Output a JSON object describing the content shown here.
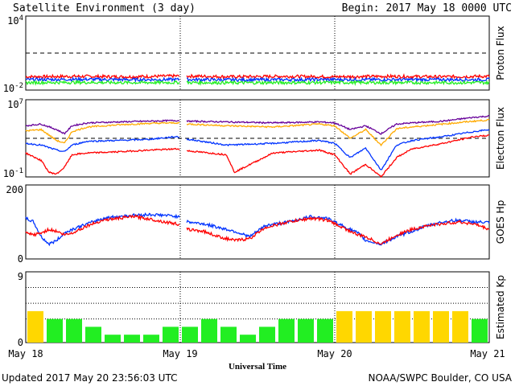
{
  "header": {
    "title": "Satellite Environment (3 day)",
    "begin": "Begin:  2017 May 18 0000 UTC"
  },
  "footer": {
    "updated": "Updated 2017 May 20 23:56:03 UTC",
    "credit": "NOAA/SWPC Boulder, CO USA",
    "xlabel": "Universal Time"
  },
  "colors": {
    "red": "#ff0000",
    "blue": "#0033ff",
    "green": "#22ee22",
    "purple": "#660099",
    "orange": "#ffaa00",
    "kp_green": "#22ee22",
    "kp_yellow": "#ffd700"
  },
  "chart_data": [
    {
      "type": "line",
      "name": "proton-flux",
      "ylabel": "Proton Flux",
      "yscale": "log",
      "ylim": [
        0.01,
        10000
      ],
      "ytick_labels": {
        "top_base": "10",
        "top_exp": "4",
        "bottom_base": "10",
        "bottom_exp": "-2"
      },
      "threshold": 10,
      "xlim_days": [
        0,
        3
      ],
      "series": [
        {
          "color": "red",
          "values": [
            0.12,
            0.13,
            0.12,
            0.14,
            0.12,
            0.13,
            0.12,
            0.13,
            0.12,
            0.13
          ]
        },
        {
          "color": "blue",
          "values": [
            0.07,
            0.075,
            0.07,
            0.072,
            0.068,
            0.07,
            0.072,
            0.07,
            0.071,
            0.07
          ]
        },
        {
          "color": "green",
          "values": [
            0.04,
            0.042,
            0.04,
            0.041,
            0.039,
            0.04,
            0.041,
            0.04,
            0.04,
            0.04
          ]
        }
      ]
    },
    {
      "type": "line",
      "name": "electron-flux",
      "ylabel": "Electron Flux",
      "yscale": "log",
      "ylim": [
        0.1,
        10000000
      ],
      "ytick_labels": {
        "top_base": "10",
        "top_exp": "7",
        "bottom_base": "10",
        "bottom_exp": "-1"
      },
      "threshold": 1000,
      "xlim_days": [
        0,
        3
      ],
      "series": [
        {
          "color": "purple",
          "x": [
            0,
            0.1,
            0.2,
            0.25,
            0.3,
            0.4,
            0.6,
            0.8,
            0.98,
            1.05,
            1.3,
            1.6,
            1.9,
            2.0,
            2.1,
            2.2,
            2.3,
            2.4,
            2.5,
            2.7,
            2.9,
            3.0
          ],
          "values": [
            20000,
            30000,
            8000,
            3000,
            20000,
            40000,
            50000,
            60000,
            70000,
            60000,
            50000,
            40000,
            50000,
            40000,
            8000,
            20000,
            3000,
            30000,
            40000,
            60000,
            150000,
            200000
          ]
        },
        {
          "color": "orange",
          "x": [
            0,
            0.1,
            0.2,
            0.25,
            0.3,
            0.4,
            0.6,
            0.8,
            0.98,
            1.05,
            1.3,
            1.6,
            1.9,
            2.0,
            2.1,
            2.2,
            2.3,
            2.4,
            2.5,
            2.7,
            2.9,
            3.0
          ],
          "values": [
            6000,
            8000,
            600,
            300,
            5000,
            15000,
            25000,
            35000,
            40000,
            30000,
            20000,
            15000,
            30000,
            20000,
            1000,
            8000,
            200,
            10000,
            15000,
            30000,
            60000,
            80000
          ]
        },
        {
          "color": "blue",
          "x": [
            0,
            0.1,
            0.2,
            0.25,
            0.3,
            0.4,
            0.6,
            0.8,
            0.98,
            1.05,
            1.3,
            1.6,
            1.9,
            2.0,
            2.1,
            2.2,
            2.3,
            2.4,
            2.5,
            2.7,
            2.9,
            3.0
          ],
          "values": [
            300,
            200,
            60,
            40,
            200,
            500,
            600,
            800,
            1500,
            800,
            200,
            300,
            600,
            300,
            10,
            100,
            0.5,
            200,
            600,
            1500,
            5000,
            8000
          ]
        },
        {
          "color": "red",
          "x": [
            0,
            0.1,
            0.15,
            0.2,
            0.25,
            0.3,
            0.4,
            0.6,
            0.8,
            0.98,
            1.05,
            1.3,
            1.35,
            1.6,
            1.9,
            2.0,
            2.1,
            2.2,
            2.3,
            2.4,
            2.5,
            2.7,
            2.9,
            3.0
          ],
          "values": [
            30,
            5,
            0.3,
            0.2,
            1,
            20,
            30,
            40,
            60,
            80,
            50,
            20,
            0.3,
            30,
            60,
            20,
            0.2,
            2,
            0.1,
            10,
            80,
            300,
            1500,
            2000
          ]
        }
      ]
    },
    {
      "type": "line",
      "name": "goes-hp",
      "ylabel": "GOES Hp",
      "ylim": [
        0,
        200
      ],
      "ytick_labels": [
        "0",
        "200"
      ],
      "xlim_days": [
        0,
        3
      ],
      "series": [
        {
          "color": "blue",
          "x": [
            0,
            0.05,
            0.1,
            0.15,
            0.2,
            0.25,
            0.3,
            0.4,
            0.5,
            0.6,
            0.7,
            0.8,
            0.9,
            0.98,
            1.05,
            1.15,
            1.25,
            1.35,
            1.45,
            1.55,
            1.7,
            1.85,
            1.95,
            2.05,
            2.15,
            2.2,
            2.3,
            2.4,
            2.5,
            2.6,
            2.7,
            2.8,
            2.9,
            3.0
          ],
          "values": [
            110,
            100,
            60,
            40,
            50,
            70,
            80,
            95,
            110,
            115,
            118,
            120,
            118,
            115,
            100,
            95,
            85,
            75,
            60,
            90,
            100,
            115,
            110,
            90,
            70,
            50,
            40,
            60,
            75,
            90,
            100,
            105,
            100,
            98
          ]
        },
        {
          "color": "red",
          "x": [
            0,
            0.05,
            0.1,
            0.15,
            0.2,
            0.25,
            0.3,
            0.4,
            0.5,
            0.6,
            0.7,
            0.8,
            0.9,
            0.98,
            1.05,
            1.15,
            1.25,
            1.35,
            1.45,
            1.55,
            1.7,
            1.85,
            1.95,
            2.05,
            2.15,
            2.2,
            2.3,
            2.4,
            2.5,
            2.6,
            2.7,
            2.8,
            2.9,
            3.0
          ],
          "values": [
            70,
            65,
            70,
            80,
            75,
            65,
            70,
            90,
            105,
            110,
            115,
            108,
            100,
            95,
            80,
            75,
            60,
            50,
            55,
            85,
            100,
            110,
            105,
            85,
            65,
            60,
            40,
            65,
            80,
            90,
            95,
            100,
            95,
            80
          ]
        }
      ]
    },
    {
      "type": "bar",
      "name": "estimated-kp",
      "ylabel": "Estimated Kp",
      "ylim": [
        0,
        9
      ],
      "ytick_labels": [
        "0",
        "9"
      ],
      "yellow_threshold": 4,
      "values": [
        4,
        3,
        3,
        2,
        1,
        1,
        1,
        2,
        2,
        3,
        2,
        1,
        2,
        3,
        3,
        3,
        4,
        4,
        4,
        4,
        4,
        4,
        4,
        3
      ],
      "xtick_labels": [
        "May 18",
        "May 19",
        "May 20",
        "May 21"
      ]
    }
  ]
}
